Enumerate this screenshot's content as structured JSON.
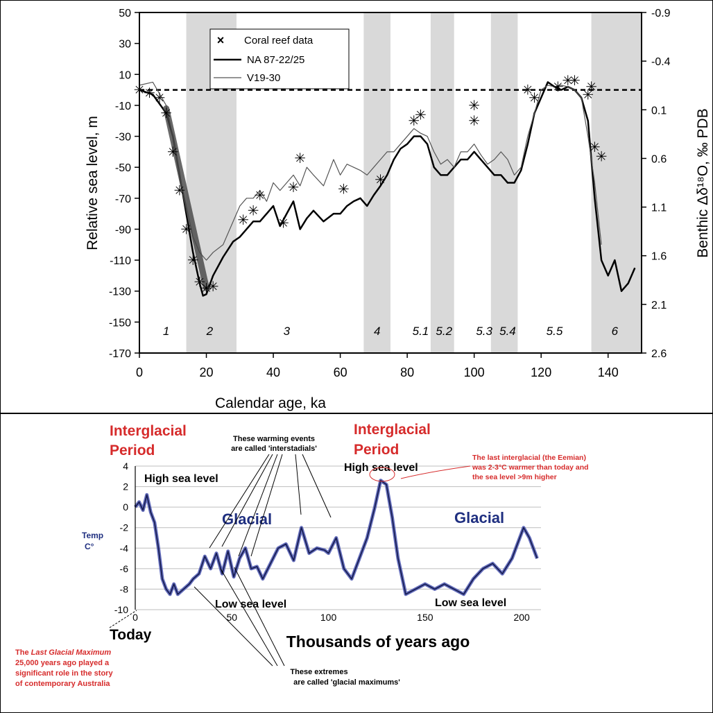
{
  "chart_data": [
    {
      "type": "line",
      "xlabel": "Calendar age, ka",
      "ylabel": "Relative sea level, m",
      "y2label": "Benthic Δδ¹⁸O, ‰ PDB",
      "xlim": [
        0,
        150
      ],
      "ylim": [
        -170,
        50
      ],
      "y2lim": [
        2.6,
        -0.9
      ],
      "x_ticks": [
        0,
        20,
        40,
        60,
        80,
        100,
        120,
        140
      ],
      "y_ticks": [
        50,
        30,
        10,
        -10,
        -30,
        -50,
        -70,
        -90,
        -110,
        -130,
        -150,
        -170
      ],
      "y2_ticks": [
        -0.9,
        -0.4,
        0.1,
        0.6,
        1.1,
        1.6,
        2.1,
        2.6
      ],
      "legend_position": "top-left",
      "legend": [
        "Coral reef data",
        "NA 87-22/25",
        "V19-30"
      ],
      "shaded_bands": [
        {
          "from": 14,
          "to": 29
        },
        {
          "from": 67,
          "to": 75
        },
        {
          "from": 87,
          "to": 94
        },
        {
          "from": 105,
          "to": 113
        },
        {
          "from": 135,
          "to": 150
        }
      ],
      "stage_labels": [
        {
          "label": "1",
          "x": 8
        },
        {
          "label": "2",
          "x": 21
        },
        {
          "label": "3",
          "x": 44
        },
        {
          "label": "4",
          "x": 71
        },
        {
          "label": "5.1",
          "x": 84
        },
        {
          "label": "5.2",
          "x": 91
        },
        {
          "label": "5.3",
          "x": 103
        },
        {
          "label": "5.4",
          "x": 110
        },
        {
          "label": "5.5",
          "x": 124
        },
        {
          "label": "6",
          "x": 142
        }
      ],
      "series": [
        {
          "name": "NA 87-22/25",
          "x": [
            0,
            4,
            8,
            10,
            12,
            14,
            16,
            18,
            19,
            20,
            22,
            25,
            28,
            30,
            32,
            34,
            36,
            38,
            40,
            42,
            44,
            46,
            48,
            50,
            52,
            55,
            58,
            60,
            62,
            64,
            66,
            68,
            70,
            72,
            74,
            76,
            78,
            80,
            82,
            84,
            86,
            88,
            90,
            92,
            94,
            96,
            98,
            100,
            102,
            104,
            106,
            108,
            110,
            112,
            114,
            116,
            118,
            120,
            122,
            124,
            126,
            128,
            130,
            132,
            134,
            136,
            138,
            140,
            142,
            144,
            146,
            148
          ],
          "y": [
            0,
            -3,
            -15,
            -30,
            -55,
            -80,
            -105,
            -125,
            -133,
            -132,
            -120,
            -108,
            -98,
            -95,
            -90,
            -85,
            -85,
            -80,
            -75,
            -88,
            -80,
            -72,
            -90,
            -83,
            -78,
            -85,
            -80,
            -80,
            -75,
            -72,
            -70,
            -75,
            -68,
            -62,
            -55,
            -45,
            -38,
            -35,
            -30,
            -30,
            -35,
            -50,
            -55,
            -55,
            -50,
            -45,
            -45,
            -40,
            -45,
            -50,
            -55,
            -55,
            -60,
            -60,
            -52,
            -35,
            -15,
            -5,
            5,
            2,
            0,
            2,
            0,
            -5,
            -20,
            -70,
            -110,
            -120,
            -110,
            -130,
            -125,
            -115
          ]
        },
        {
          "name": "V19-30",
          "x": [
            0,
            4,
            8,
            10,
            12,
            14,
            16,
            18,
            20,
            22,
            25,
            28,
            30,
            32,
            34,
            36,
            38,
            40,
            42,
            44,
            46,
            48,
            50,
            52,
            55,
            58,
            60,
            62,
            64,
            66,
            68,
            70,
            72,
            74,
            76,
            78,
            80,
            82,
            84,
            86,
            88,
            90,
            92,
            94,
            96,
            98,
            100,
            102,
            104,
            106,
            108,
            110,
            112,
            114,
            116,
            118,
            120,
            122,
            124,
            126,
            128,
            130,
            132,
            134,
            136,
            138
          ],
          "y": [
            3,
            5,
            -10,
            -30,
            -55,
            -75,
            -95,
            -105,
            -110,
            -105,
            -100,
            -85,
            -75,
            -70,
            -70,
            -65,
            -72,
            -60,
            -65,
            -60,
            -55,
            -62,
            -50,
            -55,
            -62,
            -45,
            -55,
            -48,
            -50,
            -52,
            -55,
            -50,
            -45,
            -40,
            -40,
            -35,
            -30,
            -25,
            -28,
            -30,
            -40,
            -48,
            -45,
            -50,
            -40,
            -40,
            -35,
            -42,
            -48,
            -45,
            -40,
            -45,
            -55,
            -50,
            -30,
            -15,
            0,
            3,
            2,
            3,
            2,
            0,
            -5,
            -30,
            -60,
            -100
          ]
        }
      ],
      "coral_reef_data": [
        {
          "x": 0,
          "y": 0
        },
        {
          "x": 3,
          "y": -2
        },
        {
          "x": 6,
          "y": -5
        },
        {
          "x": 8,
          "y": -15
        },
        {
          "x": 10,
          "y": -40
        },
        {
          "x": 12,
          "y": -65
        },
        {
          "x": 14,
          "y": -90
        },
        {
          "x": 16,
          "y": -110
        },
        {
          "x": 18,
          "y": -124
        },
        {
          "x": 20,
          "y": -128
        },
        {
          "x": 22,
          "y": -127
        },
        {
          "x": 31,
          "y": -84
        },
        {
          "x": 34,
          "y": -78
        },
        {
          "x": 36,
          "y": -68
        },
        {
          "x": 43,
          "y": -86
        },
        {
          "x": 46,
          "y": -63
        },
        {
          "x": 48,
          "y": -44
        },
        {
          "x": 61,
          "y": -64
        },
        {
          "x": 72,
          "y": -58
        },
        {
          "x": 82,
          "y": -20
        },
        {
          "x": 84,
          "y": -16
        },
        {
          "x": 100,
          "y": -10
        },
        {
          "x": 100,
          "y": -20
        },
        {
          "x": 116,
          "y": 0
        },
        {
          "x": 118,
          "y": -5
        },
        {
          "x": 125,
          "y": 2
        },
        {
          "x": 128,
          "y": 6
        },
        {
          "x": 130,
          "y": 6
        },
        {
          "x": 134,
          "y": -3
        },
        {
          "x": 135,
          "y": 2
        },
        {
          "x": 136,
          "y": -37
        },
        {
          "x": 138,
          "y": -43
        }
      ],
      "reference_line_y": 0
    },
    {
      "type": "line",
      "xlabel": "Thousands of years ago",
      "ylabel": "Temp C°",
      "xlim": [
        0,
        210
      ],
      "ylim": [
        -10,
        4
      ],
      "x_ticks": [
        0,
        50,
        100,
        150,
        200
      ],
      "y_ticks": [
        4,
        2,
        0,
        -2,
        -4,
        -6,
        -8,
        -10
      ],
      "grid": true,
      "series": [
        {
          "name": "",
          "x": [
            0,
            2,
            4,
            6,
            8,
            10,
            12,
            14,
            16,
            18,
            20,
            22,
            25,
            28,
            30,
            33,
            36,
            39,
            42,
            45,
            48,
            51,
            54,
            57,
            60,
            63,
            66,
            70,
            74,
            78,
            82,
            86,
            90,
            94,
            98,
            100,
            104,
            108,
            112,
            116,
            120,
            124,
            127,
            130,
            133,
            136,
            140,
            145,
            150,
            155,
            160,
            165,
            170,
            175,
            180,
            185,
            190,
            195,
            198,
            201,
            204,
            208
          ],
          "y": [
            0,
            0.5,
            -0.3,
            1.2,
            -0.5,
            -1.5,
            -4,
            -7,
            -8,
            -8.5,
            -7.5,
            -8.5,
            -8,
            -7.5,
            -7,
            -6.5,
            -4.8,
            -6,
            -4.5,
            -6.5,
            -4.3,
            -6.8,
            -5,
            -4,
            -6,
            -5.8,
            -7,
            -5.5,
            -4,
            -3.6,
            -5.2,
            -2,
            -4.5,
            -4,
            -4.2,
            -4.5,
            -3,
            -6,
            -7,
            -5,
            -3,
            0,
            2.6,
            2.2,
            -1,
            -5,
            -8.5,
            -8,
            -7.5,
            -8,
            -7.5,
            -8,
            -8.5,
            -7,
            -6,
            -5.5,
            -6.5,
            -5,
            -3.5,
            -2,
            -3,
            -5
          ]
        }
      ],
      "annotations": {
        "interglacial_1": "Interglacial Period",
        "interglacial_2": "Interglacial Period",
        "interstadials": "These warming events are called 'interstadials'",
        "eemian": "The last interglacial (the Eemian) was 2-3°C warmer than today and the sea level >9m higher",
        "high_sea_1": "High sea level",
        "high_sea_2": "High sea level",
        "glacial_1": "Glacial",
        "glacial_2": "Glacial",
        "low_sea_1": "Low sea level",
        "low_sea_2": "Low sea level",
        "today": "Today",
        "lgm": "The Last Glacial Maximum 25,000 years ago played a significant role in the story of contemporary Australia",
        "extremes": "These extremes are called 'glacial maximums'"
      }
    }
  ]
}
